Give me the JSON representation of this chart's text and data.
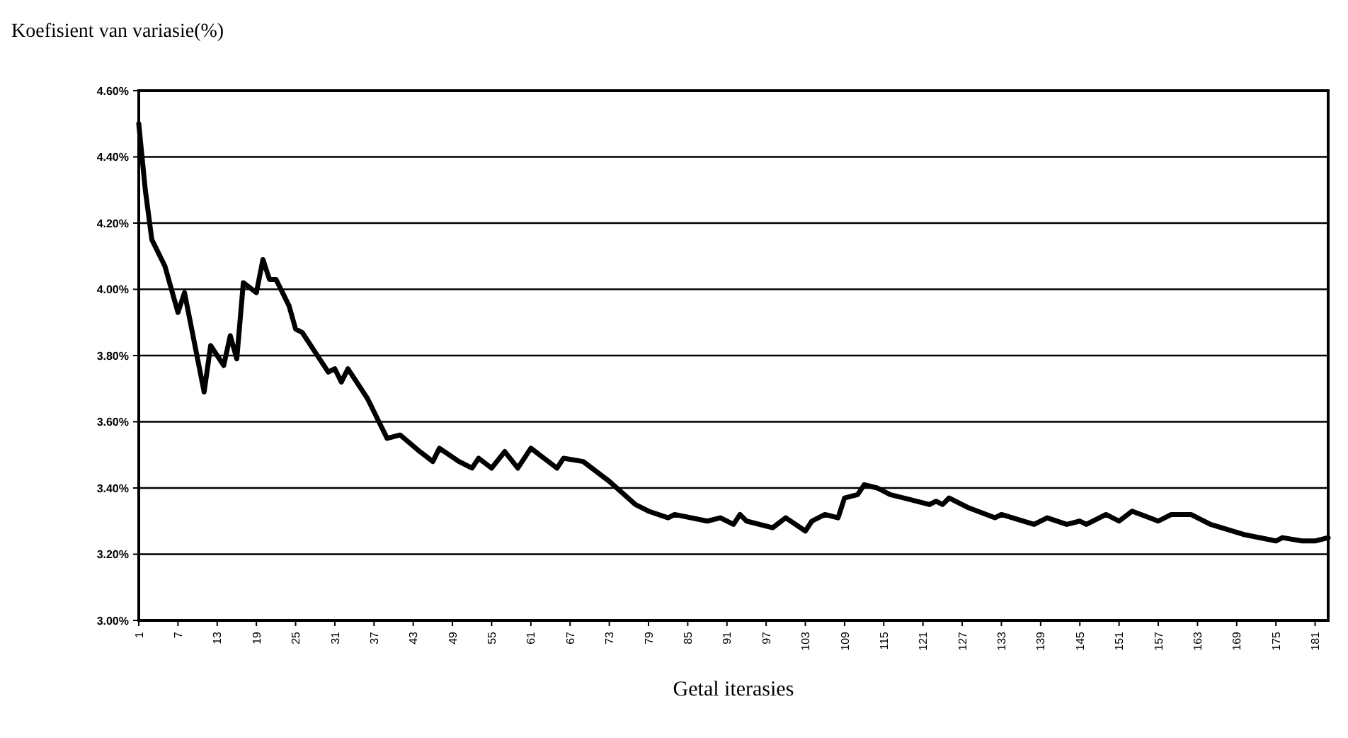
{
  "chart_data": {
    "type": "line",
    "title": "Koefisient van variasie(%)",
    "xlabel": "Getal iterasies",
    "x": [
      1,
      2,
      3,
      5,
      7,
      8,
      11,
      12,
      14,
      15,
      16,
      17,
      19,
      20,
      21,
      22,
      24,
      25,
      26,
      28,
      30,
      31,
      32,
      33,
      36,
      38,
      39,
      41,
      44,
      46,
      47,
      50,
      52,
      53,
      55,
      57,
      59,
      61,
      65,
      66,
      69,
      73,
      77,
      79,
      82,
      83,
      88,
      90,
      92,
      93,
      94,
      98,
      100,
      103,
      104,
      106,
      108,
      109,
      111,
      112,
      114,
      116,
      120,
      122,
      123,
      124,
      125,
      128,
      132,
      133,
      138,
      140,
      143,
      145,
      146,
      149,
      151,
      153,
      157,
      159,
      162,
      165,
      170,
      175,
      176,
      179,
      181,
      183
    ],
    "series": [
      {
        "color": "#000000",
        "values": [
          4.5,
          4.3,
          4.15,
          4.07,
          3.93,
          3.99,
          3.69,
          3.83,
          3.77,
          3.86,
          3.79,
          4.02,
          3.99,
          4.09,
          4.03,
          4.03,
          3.95,
          3.88,
          3.87,
          3.81,
          3.75,
          3.76,
          3.72,
          3.76,
          3.67,
          3.59,
          3.55,
          3.56,
          3.51,
          3.48,
          3.52,
          3.48,
          3.46,
          3.49,
          3.46,
          3.51,
          3.46,
          3.52,
          3.46,
          3.49,
          3.48,
          3.42,
          3.35,
          3.33,
          3.31,
          3.32,
          3.3,
          3.31,
          3.29,
          3.32,
          3.3,
          3.28,
          3.31,
          3.27,
          3.3,
          3.32,
          3.31,
          3.37,
          3.38,
          3.41,
          3.4,
          3.38,
          3.36,
          3.35,
          3.36,
          3.35,
          3.37,
          3.34,
          3.31,
          3.32,
          3.29,
          3.31,
          3.29,
          3.3,
          3.29,
          3.32,
          3.3,
          3.33,
          3.3,
          3.32,
          3.32,
          3.29,
          3.26,
          3.24,
          3.25,
          3.24,
          3.24,
          3.25
        ]
      }
    ],
    "xlim": [
      1,
      183
    ],
    "xticks": [
      1,
      7,
      13,
      19,
      25,
      31,
      37,
      43,
      49,
      55,
      61,
      67,
      73,
      79,
      85,
      91,
      97,
      103,
      109,
      115,
      121,
      127,
      133,
      139,
      145,
      151,
      157,
      163,
      169,
      175,
      181
    ],
    "ylim": [
      3.0,
      4.6
    ],
    "yticks": [
      {
        "value": 3.0,
        "label": "3.00%"
      },
      {
        "value": 3.2,
        "label": "3.20%"
      },
      {
        "value": 3.4,
        "label": "3.40%"
      },
      {
        "value": 3.6,
        "label": "3.60%"
      },
      {
        "value": 3.8,
        "label": "3.80%"
      },
      {
        "value": 4.0,
        "label": "4.00%"
      },
      {
        "value": 4.2,
        "label": "4.20%"
      },
      {
        "value": 4.4,
        "label": "4.40%"
      },
      {
        "value": 4.6,
        "label": "4.60%"
      }
    ],
    "grid": "y"
  }
}
